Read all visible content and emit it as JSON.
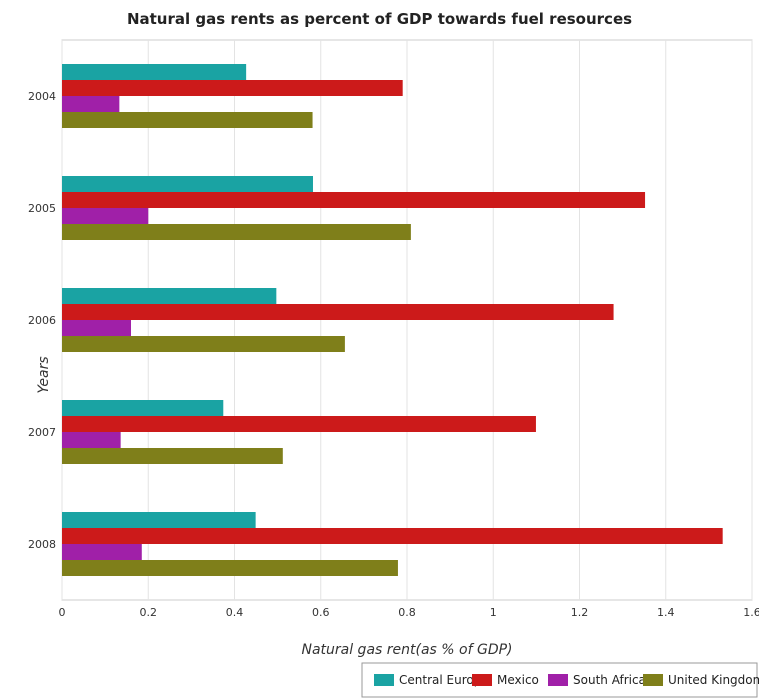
{
  "chart_data": {
    "type": "bar",
    "orientation": "horizontal",
    "title": "Natural gas rents as percent of GDP towards fuel resources",
    "xlabel": "Natural gas rent(as % of GDP)",
    "ylabel": "Years",
    "categories": [
      "2004",
      "2005",
      "2006",
      "2007",
      "2008"
    ],
    "xlim": [
      0,
      1.6
    ],
    "xticks": [
      "0",
      "0.2",
      "0.4",
      "0.6",
      "0.8",
      "1",
      "1.2",
      "1.4",
      "1.6"
    ],
    "xtick_values": [
      0,
      0.2,
      0.4,
      0.6,
      0.8,
      1.0,
      1.2,
      1.4,
      1.6
    ],
    "grid": true,
    "legend_position": "bottom-right",
    "series": [
      {
        "name": "Central Europe",
        "color": "#1aa3a3",
        "values": [
          0.427,
          0.582,
          0.497,
          0.374,
          0.449
        ]
      },
      {
        "name": "Mexico",
        "color": "#cc1a1a",
        "values": [
          0.79,
          1.352,
          1.279,
          1.099,
          1.532
        ]
      },
      {
        "name": "South Africa",
        "color": "#a020a8",
        "values": [
          0.133,
          0.2,
          0.16,
          0.136,
          0.185
        ]
      },
      {
        "name": "United Kingdom",
        "color": "#7f7f1a",
        "values": [
          0.581,
          0.809,
          0.656,
          0.512,
          0.779
        ]
      }
    ]
  }
}
